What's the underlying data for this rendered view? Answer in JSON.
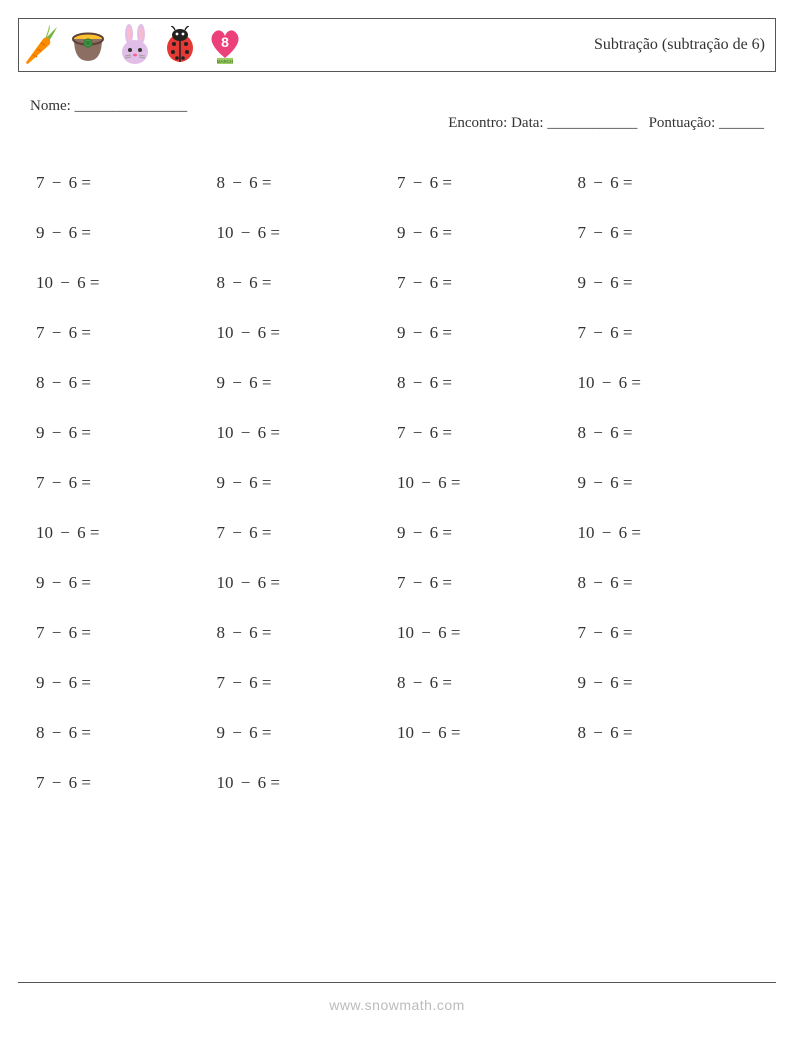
{
  "header": {
    "title": "Subtração (subtração de 6)",
    "icons": [
      "carrot",
      "pot-of-gold",
      "rabbit",
      "ladybug",
      "heart-8"
    ]
  },
  "info": {
    "name_label": "Nome: _______________",
    "date_label": "Encontro: Data: ____________",
    "score_label": "Pontuação: ______"
  },
  "style": {
    "page_bg": "#ffffff",
    "border_color": "#555555",
    "text_color": "#333333",
    "footer_color": "#bbbbbb",
    "font_family": "Georgia, 'Times New Roman', serif",
    "title_fontsize": 16,
    "body_fontsize": 15,
    "problem_fontsize": 17,
    "columns": 4,
    "rows": 13,
    "row_gap": 30
  },
  "subtrahend": 6,
  "problems_grid": [
    [
      7,
      8,
      7,
      8
    ],
    [
      9,
      10,
      9,
      7
    ],
    [
      10,
      8,
      7,
      9
    ],
    [
      7,
      10,
      9,
      7
    ],
    [
      8,
      9,
      8,
      10
    ],
    [
      9,
      10,
      7,
      8
    ],
    [
      7,
      9,
      10,
      9
    ],
    [
      10,
      7,
      9,
      10
    ],
    [
      9,
      10,
      7,
      8
    ],
    [
      7,
      8,
      10,
      7
    ],
    [
      9,
      7,
      8,
      9
    ],
    [
      8,
      9,
      10,
      8
    ],
    [
      7,
      10,
      null,
      null
    ]
  ],
  "footer": {
    "url": "www.snowmath.com"
  }
}
